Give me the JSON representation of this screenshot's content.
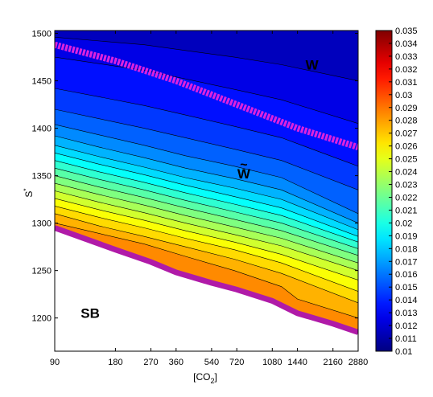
{
  "chart_data": {
    "type": "heatmap",
    "xlabel": "[CO",
    "xlabel_sub": "2",
    "xlabel_end": "]",
    "ylabel": "S",
    "ylabel_sup": "*",
    "x_scale": "log",
    "x_ticks": [
      90,
      180,
      270,
      360,
      540,
      720,
      1080,
      1440,
      2160,
      2880
    ],
    "x_tick_labels": [
      "90",
      "180",
      "270",
      "360",
      "540",
      "720",
      "1080",
      "1440",
      "2160",
      "2880"
    ],
    "xlim": [
      90,
      2880
    ],
    "y_ticks": [
      1200,
      1250,
      1300,
      1350,
      1400,
      1450,
      1500
    ],
    "y_tick_labels": [
      "1200",
      "1250",
      "1300",
      "1350",
      "1400",
      "1450",
      "1500"
    ],
    "ylim": [
      1165,
      1503
    ],
    "colorbar": {
      "min": 0.01,
      "max": 0.035,
      "ticks": [
        0.01,
        0.011,
        0.012,
        0.013,
        0.014,
        0.015,
        0.016,
        0.017,
        0.018,
        0.019,
        0.02,
        0.021,
        0.022,
        0.023,
        0.024,
        0.025,
        0.026,
        0.027,
        0.028,
        0.029,
        0.03,
        0.031,
        0.032,
        0.033,
        0.034,
        0.035
      ],
      "tick_labels": [
        "0.01",
        "0.011",
        "0.012",
        "0.013",
        "0.014",
        "0.015",
        "0.016",
        "0.017",
        "0.018",
        "0.019",
        "0.02",
        "0.021",
        "0.022",
        "0.023",
        "0.024",
        "0.025",
        "0.026",
        "0.027",
        "0.028",
        "0.029",
        "0.03",
        "0.031",
        "0.032",
        "0.033",
        "0.034",
        "0.035"
      ]
    },
    "contours": [
      {
        "level": 0.028,
        "points": [
          [
            90,
            1300
          ],
          [
            150,
            1289
          ],
          [
            250,
            1278
          ],
          [
            400,
            1265
          ],
          [
            700,
            1250
          ],
          [
            1200,
            1233
          ],
          [
            1440,
            1220
          ],
          [
            2880,
            1200
          ]
        ]
      },
      {
        "level": 0.027,
        "points": [
          [
            90,
            1310
          ],
          [
            150,
            1297
          ],
          [
            250,
            1286
          ],
          [
            400,
            1275
          ],
          [
            700,
            1262
          ],
          [
            1200,
            1247
          ],
          [
            2880,
            1216
          ]
        ]
      },
      {
        "level": 0.026,
        "points": [
          [
            90,
            1318
          ],
          [
            150,
            1306
          ],
          [
            250,
            1295
          ],
          [
            400,
            1284
          ],
          [
            700,
            1272
          ],
          [
            1200,
            1258
          ],
          [
            2880,
            1228
          ]
        ]
      },
      {
        "level": 0.025,
        "points": [
          [
            90,
            1326
          ],
          [
            150,
            1314
          ],
          [
            250,
            1303
          ],
          [
            400,
            1292
          ],
          [
            700,
            1280
          ],
          [
            1200,
            1267
          ],
          [
            2880,
            1240
          ]
        ]
      },
      {
        "level": 0.024,
        "points": [
          [
            90,
            1334
          ],
          [
            150,
            1322
          ],
          [
            250,
            1311
          ],
          [
            400,
            1300
          ],
          [
            700,
            1288
          ],
          [
            1200,
            1276
          ],
          [
            2880,
            1250
          ]
        ]
      },
      {
        "level": 0.023,
        "points": [
          [
            90,
            1342
          ],
          [
            150,
            1330
          ],
          [
            250,
            1319
          ],
          [
            400,
            1308
          ],
          [
            700,
            1296
          ],
          [
            1200,
            1284
          ],
          [
            2880,
            1258
          ]
        ]
      },
      {
        "level": 0.022,
        "points": [
          [
            90,
            1350
          ],
          [
            150,
            1338
          ],
          [
            250,
            1327
          ],
          [
            400,
            1316
          ],
          [
            700,
            1304
          ],
          [
            1200,
            1292
          ],
          [
            2880,
            1266
          ]
        ]
      },
      {
        "level": 0.021,
        "points": [
          [
            90,
            1358
          ],
          [
            150,
            1346
          ],
          [
            250,
            1335
          ],
          [
            400,
            1324
          ],
          [
            700,
            1312
          ],
          [
            1200,
            1300
          ],
          [
            2880,
            1273
          ]
        ]
      },
      {
        "level": 0.02,
        "points": [
          [
            90,
            1366
          ],
          [
            150,
            1354
          ],
          [
            250,
            1343
          ],
          [
            400,
            1332
          ],
          [
            700,
            1320
          ],
          [
            1200,
            1308
          ],
          [
            2880,
            1280
          ]
        ]
      },
      {
        "level": 0.019,
        "points": [
          [
            90,
            1374
          ],
          [
            150,
            1362
          ],
          [
            250,
            1351
          ],
          [
            400,
            1340
          ],
          [
            700,
            1328
          ],
          [
            1200,
            1316
          ],
          [
            2880,
            1286
          ]
        ]
      },
      {
        "level": 0.018,
        "points": [
          [
            90,
            1382
          ],
          [
            150,
            1370
          ],
          [
            250,
            1359
          ],
          [
            400,
            1348
          ],
          [
            700,
            1337
          ],
          [
            1200,
            1325
          ],
          [
            2880,
            1293
          ]
        ]
      },
      {
        "level": 0.017,
        "points": [
          [
            90,
            1392
          ],
          [
            150,
            1380
          ],
          [
            250,
            1369
          ],
          [
            400,
            1358
          ],
          [
            700,
            1347
          ],
          [
            1200,
            1335
          ],
          [
            2880,
            1300
          ]
        ]
      },
      {
        "level": 0.016,
        "points": [
          [
            90,
            1404
          ],
          [
            150,
            1393
          ],
          [
            250,
            1382
          ],
          [
            400,
            1371
          ],
          [
            700,
            1360
          ],
          [
            1200,
            1348
          ],
          [
            2880,
            1310
          ]
        ]
      },
      {
        "level": 0.015,
        "points": [
          [
            90,
            1420
          ],
          [
            150,
            1410
          ],
          [
            250,
            1400
          ],
          [
            400,
            1390
          ],
          [
            700,
            1378
          ],
          [
            1200,
            1366
          ],
          [
            2880,
            1335
          ]
        ]
      },
      {
        "level": 0.014,
        "points": [
          [
            90,
            1442
          ],
          [
            150,
            1433
          ],
          [
            250,
            1424
          ],
          [
            400,
            1414
          ],
          [
            700,
            1402
          ],
          [
            1200,
            1390
          ],
          [
            2880,
            1360
          ]
        ]
      },
      {
        "level": 0.013,
        "points": [
          [
            90,
            1475
          ],
          [
            150,
            1468
          ],
          [
            250,
            1461
          ],
          [
            400,
            1452
          ],
          [
            700,
            1441
          ],
          [
            1200,
            1430
          ],
          [
            2880,
            1405
          ]
        ]
      },
      {
        "level": 0.012,
        "points": [
          [
            90,
            1496
          ],
          [
            150,
            1492
          ],
          [
            250,
            1488
          ],
          [
            400,
            1482
          ],
          [
            700,
            1475
          ],
          [
            1200,
            1467
          ],
          [
            2880,
            1450
          ]
        ]
      }
    ],
    "lines": [
      {
        "name": "W boundary",
        "color": "#dd22dd",
        "style": "dashed",
        "points": [
          [
            90,
            1488
          ],
          [
            180,
            1471
          ],
          [
            360,
            1450
          ],
          [
            720,
            1425
          ],
          [
            1440,
            1400
          ],
          [
            2880,
            1380
          ]
        ]
      },
      {
        "name": "SB boundary",
        "color": "#b01aa8",
        "style": "solid",
        "points": [
          [
            90,
            1295
          ],
          [
            180,
            1272
          ],
          [
            270,
            1259
          ],
          [
            360,
            1248
          ],
          [
            540,
            1237
          ],
          [
            720,
            1230
          ],
          [
            1080,
            1218
          ],
          [
            1440,
            1205
          ],
          [
            2160,
            1194
          ],
          [
            2880,
            1185
          ]
        ]
      }
    ],
    "annotations": [
      {
        "text": "W",
        "x": 1700,
        "y": 1462
      },
      {
        "text": "W",
        "tilde": "~",
        "x": 780,
        "y": 1347
      },
      {
        "text": "SB",
        "x": 135,
        "y": 1200
      }
    ]
  }
}
